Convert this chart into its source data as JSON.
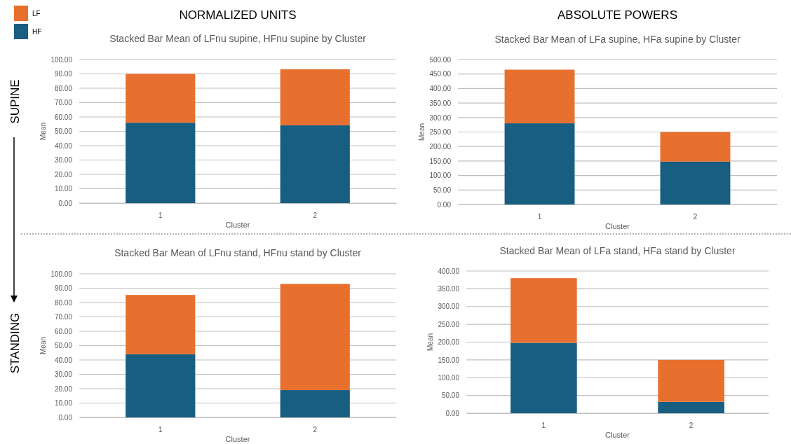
{
  "chart_data": [
    {
      "type": "bar",
      "title": "Stacked Bar Mean of LFnu supine, HFnu supine by Cluster",
      "xlabel": "Cluster",
      "ylabel": "Mean",
      "annotations": [
        "NORMALIZED UNITS",
        "SUPINE"
      ],
      "categories": [
        "1",
        "2"
      ],
      "stacked": true,
      "legend": "top left",
      "grid": "y",
      "series": [
        {
          "name": "HF",
          "color": "#175e80",
          "values": [
            56,
            54.2
          ]
        },
        {
          "name": "LF",
          "color": "#e8702f",
          "values": [
            34,
            39
          ]
        }
      ],
      "ylim": [
        0,
        100
      ],
      "yticks": [
        {
          "value": 0,
          "label": "0.00"
        },
        {
          "value": 10,
          "label": "10.00"
        },
        {
          "value": 20,
          "label": "20.00"
        },
        {
          "value": 30,
          "label": "30.00"
        },
        {
          "value": 40,
          "label": "40.00"
        },
        {
          "value": 50,
          "label": "50.00"
        },
        {
          "value": 60,
          "label": "60.00"
        },
        {
          "value": 70,
          "label": "70.00"
        },
        {
          "value": 80,
          "label": "80.00"
        },
        {
          "value": 90,
          "label": "90.00"
        },
        {
          "value": 100,
          "label": "100.00"
        }
      ]
    },
    {
      "type": "bar",
      "title": "Stacked Bar Mean of LFa supine, HFa supine by Cluster",
      "xlabel": "Cluster",
      "ylabel": "Mean",
      "annotations": [
        "ABSOLUTE POWERS"
      ],
      "categories": [
        "1",
        "2"
      ],
      "stacked": true,
      "grid": "y",
      "series": [
        {
          "color": "#175e80",
          "values": [
            280,
            148
          ]
        },
        {
          "color": "#e8702f",
          "values": [
            185,
            102
          ]
        }
      ],
      "ylim": [
        0,
        500
      ],
      "yticks": [
        {
          "value": 0,
          "label": "0.00"
        },
        {
          "value": 50,
          "label": "50.00"
        },
        {
          "value": 100,
          "label": "100.00"
        },
        {
          "value": 150,
          "label": "150.00"
        },
        {
          "value": 200,
          "label": "200.00"
        },
        {
          "value": 250,
          "label": "250.00"
        },
        {
          "value": 300,
          "label": "300.00"
        },
        {
          "value": 350,
          "label": "350.00"
        },
        {
          "value": 400,
          "label": "400.00"
        },
        {
          "value": 450,
          "label": "450.00"
        },
        {
          "value": 500,
          "label": "500.00"
        }
      ]
    },
    {
      "type": "bar",
      "title": "Stacked Bar Mean of LFnu stand, HFnu stand by Cluster",
      "xlabel": "Cluster",
      "ylabel": "Mean",
      "annotations": [
        "STANDING"
      ],
      "categories": [
        "1",
        "2"
      ],
      "stacked": true,
      "grid": "y",
      "series": [
        {
          "color": "#175e80",
          "values": [
            44,
            19
          ]
        },
        {
          "color": "#e8702f",
          "values": [
            41.3,
            74
          ]
        }
      ],
      "ylim": [
        0,
        100
      ],
      "yticks": [
        {
          "value": 0,
          "label": "0.00"
        },
        {
          "value": 10,
          "label": "10.00"
        },
        {
          "value": 20,
          "label": "20.00"
        },
        {
          "value": 30,
          "label": "30.00"
        },
        {
          "value": 40,
          "label": "40.00"
        },
        {
          "value": 50,
          "label": "50.00"
        },
        {
          "value": 60,
          "label": "60.00"
        },
        {
          "value": 70,
          "label": "70.00"
        },
        {
          "value": 80,
          "label": "80.00"
        },
        {
          "value": 90,
          "label": "90.00"
        },
        {
          "value": 100,
          "label": "100.00"
        }
      ]
    },
    {
      "type": "bar",
      "title": "Stacked Bar Mean of LFa stand, HFa stand by Cluster",
      "xlabel": "Cluster",
      "ylabel": "Mean",
      "categories": [
        "1",
        "2"
      ],
      "stacked": true,
      "grid": "y",
      "series": [
        {
          "color": "#175e80",
          "values": [
            198,
            32
          ]
        },
        {
          "color": "#e8702f",
          "values": [
            182,
            118
          ]
        }
      ],
      "ylim": [
        0,
        400
      ],
      "yticks": [
        {
          "value": 0,
          "label": "0.00"
        },
        {
          "value": 50,
          "label": "50.00"
        },
        {
          "value": 100,
          "label": "100.00"
        },
        {
          "value": 150,
          "label": "150.00"
        },
        {
          "value": 200,
          "label": "200.00"
        },
        {
          "value": 250,
          "label": "250.00"
        },
        {
          "value": 300,
          "label": "300.00"
        },
        {
          "value": 350,
          "label": "350.00"
        },
        {
          "value": 400,
          "label": "400.00"
        }
      ]
    }
  ]
}
